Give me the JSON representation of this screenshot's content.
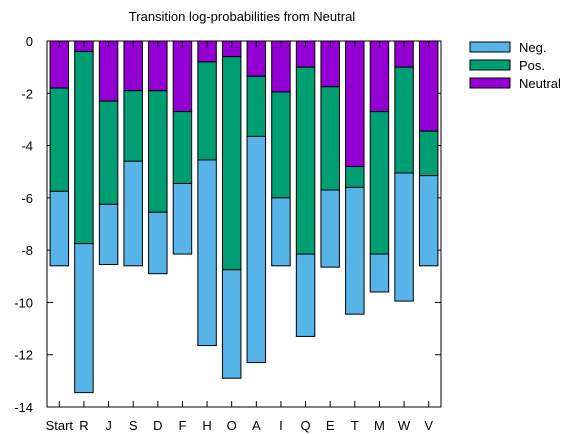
{
  "chart_data": {
    "type": "bar",
    "title": "Transition log-probabilities from Neutral",
    "xlabel": "",
    "ylabel": "",
    "ylim": [
      -14,
      0
    ],
    "yticks": [
      0,
      -2,
      -4,
      -6,
      -8,
      -10,
      -12,
      -14
    ],
    "grid": false,
    "legend_position": "top-right",
    "stacked": true,
    "categories": [
      "Start",
      "R",
      "J",
      "S",
      "D",
      "F",
      "H",
      "O",
      "A",
      "I",
      "Q",
      "E",
      "T",
      "M",
      "W",
      "V"
    ],
    "series": [
      {
        "name": "Neutral",
        "color": "#9400d3",
        "values": [
          -1.8,
          -0.4,
          -2.3,
          -1.9,
          -1.9,
          -2.7,
          -0.8,
          -0.6,
          -1.35,
          -1.95,
          -1.0,
          -1.75,
          -4.8,
          -2.7,
          -1.0,
          -3.45
        ]
      },
      {
        "name": "Pos.",
        "color": "#009e73",
        "values": [
          -3.95,
          -7.35,
          -3.95,
          -2.7,
          -4.65,
          -2.75,
          -3.75,
          -8.15,
          -2.3,
          -4.05,
          -7.15,
          -3.95,
          -0.8,
          -5.45,
          -4.05,
          -1.7
        ]
      },
      {
        "name": "Neg.",
        "color": "#56b4e9",
        "values": [
          -2.85,
          -5.7,
          -2.3,
          -4.0,
          -2.35,
          -2.7,
          -7.1,
          -4.15,
          -8.65,
          -2.6,
          -3.15,
          -2.95,
          -4.85,
          -1.45,
          -4.9,
          -3.45
        ]
      }
    ],
    "legend_order": [
      "Neg.",
      "Pos.",
      "Neutral"
    ]
  }
}
